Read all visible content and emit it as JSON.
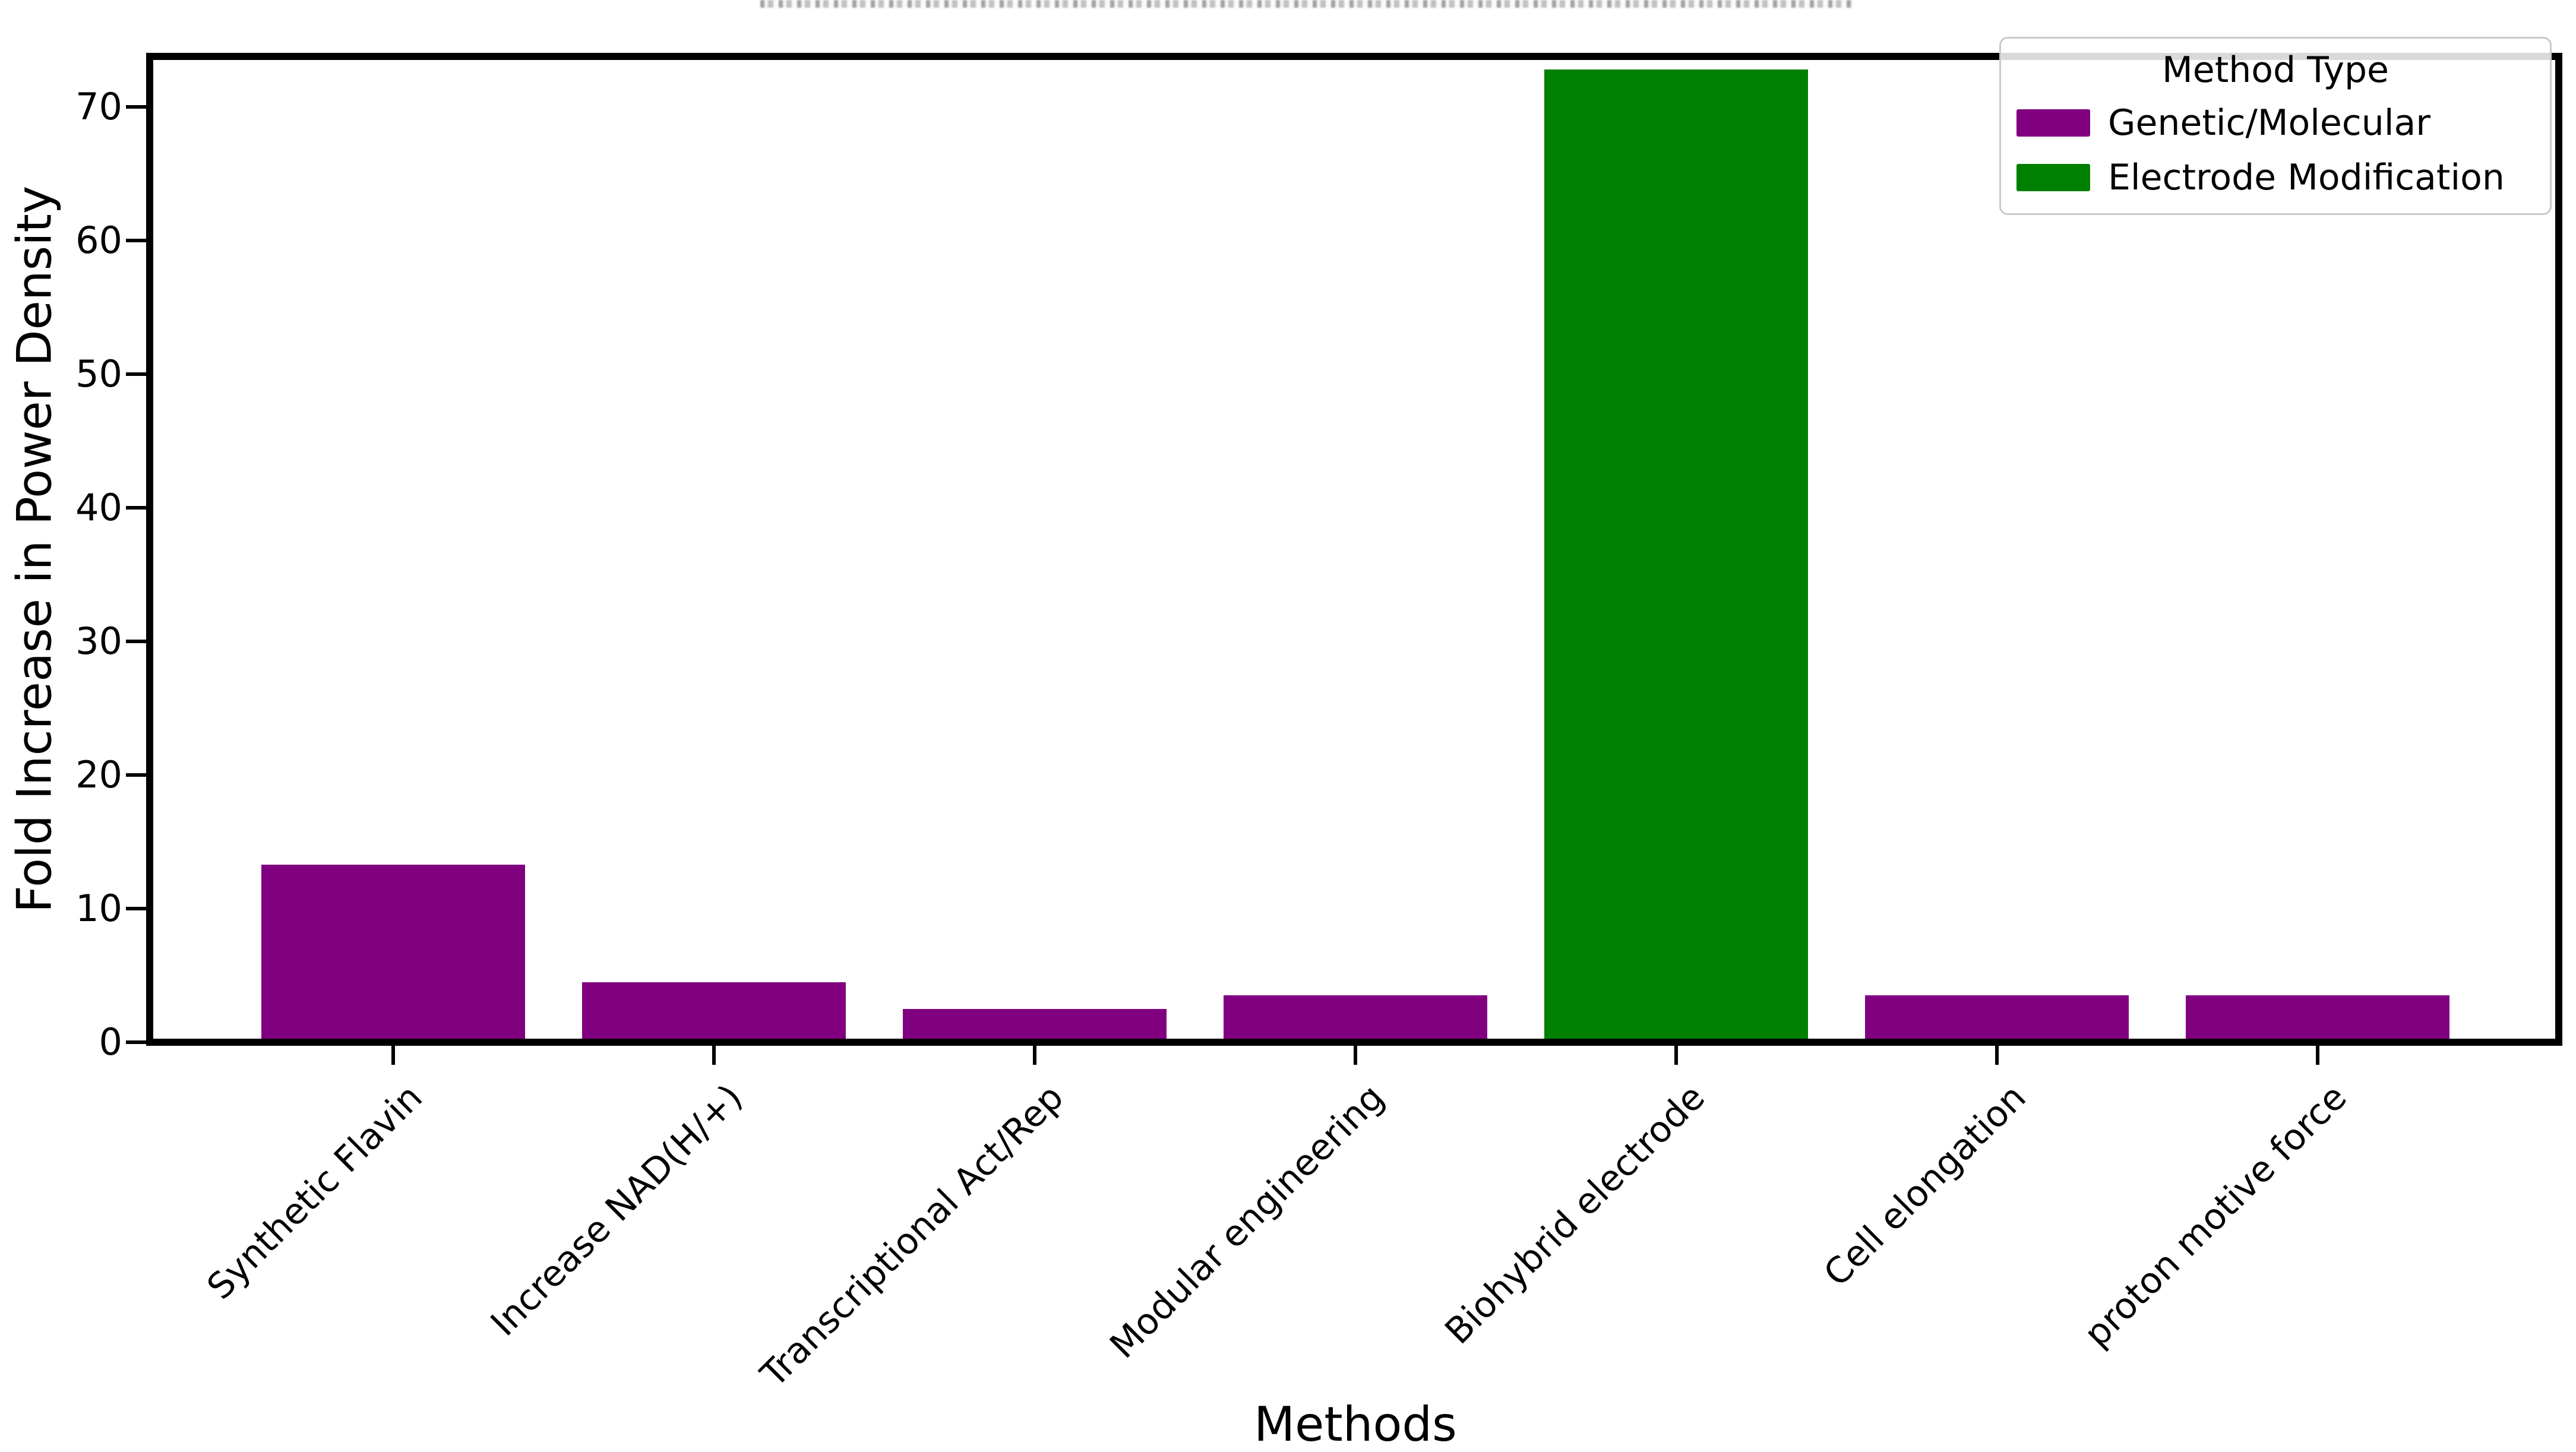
{
  "figure": {
    "title": "",
    "xlabel": "Methods",
    "ylabel": "Fold Increase in Power Density"
  },
  "legend": {
    "title": "Method Type",
    "entries": [
      {
        "label": "Genetic/Molecular",
        "color": "#800080"
      },
      {
        "label": "Electrode Modification",
        "color": "#008000"
      }
    ]
  },
  "chart_data": {
    "type": "bar",
    "title": "",
    "xlabel": "Methods",
    "ylabel": "Fold Increase in Power Density",
    "categories": [
      "Synthetic Flavin",
      "Increase NAD(H/+)",
      "Transcriptional Act/Rep",
      "Modular engineering",
      "Biohybrid electrode",
      "Cell elongation",
      "proton motive force"
    ],
    "values": [
      13.3,
      4.5,
      2.5,
      3.5,
      72.8,
      3.5,
      3.5
    ],
    "bar_colors": [
      "#800080",
      "#800080",
      "#800080",
      "#800080",
      "#008000",
      "#800080",
      "#800080"
    ],
    "method_types": [
      "Genetic/Molecular",
      "Genetic/Molecular",
      "Genetic/Molecular",
      "Genetic/Molecular",
      "Electrode Modification",
      "Genetic/Molecular",
      "Genetic/Molecular"
    ],
    "yticks": [
      0,
      10,
      20,
      30,
      40,
      50,
      60,
      70
    ],
    "ylim": [
      0,
      73.8
    ],
    "grid": false,
    "legend_position": "upper right",
    "xticklabel_rotation_deg": 45
  }
}
